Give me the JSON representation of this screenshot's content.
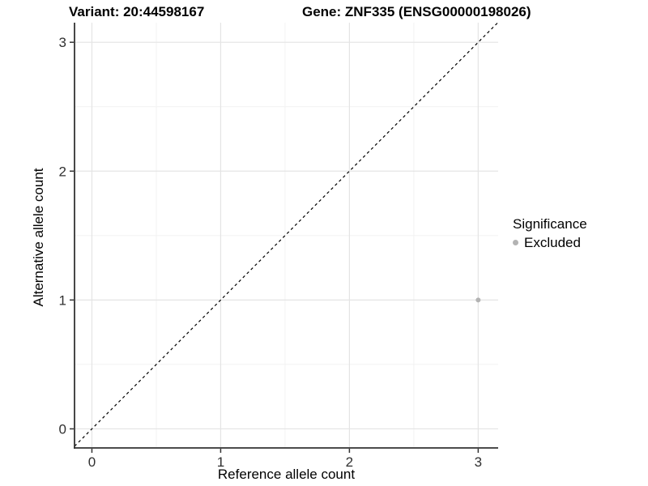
{
  "titles": {
    "variant": "Variant: 20:44598167",
    "gene": "Gene: ZNF335 (ENSG00000198026)"
  },
  "axes": {
    "x_label": "Reference allele count",
    "y_label": "Alternative allele count"
  },
  "legend": {
    "title": "Significance",
    "items": [
      {
        "label": "Excluded",
        "color": "#b3b3b3"
      }
    ]
  },
  "colors": {
    "background": "#ffffff",
    "grid_major": "#e4e4e4",
    "grid_minor": "#f2f2f2",
    "axis_line": "#333333",
    "tick_text": "#303030",
    "title_text": "#000000",
    "reference_line": "#000000",
    "point": "#b3b3b3"
  },
  "chart_data": {
    "type": "scatter",
    "title_left": "Variant: 20:44598167",
    "title_right": "Gene: ZNF335 (ENSG00000198026)",
    "xlabel": "Reference allele count",
    "ylabel": "Alternative allele count",
    "xlim": [
      -0.135,
      3.155
    ],
    "ylim": [
      -0.148,
      3.152
    ],
    "x_ticks": [
      0,
      1,
      2,
      3
    ],
    "y_ticks": [
      0,
      1,
      2,
      3
    ],
    "x_minor_ticks": [
      0.5,
      1.5,
      2.5
    ],
    "y_minor_ticks": [
      0.5,
      1.5,
      2.5
    ],
    "grid": "major+minor",
    "legend_position": "right",
    "series": [
      {
        "name": "Excluded",
        "color": "#b3b3b3",
        "points": [
          {
            "x": 3,
            "y": 1
          }
        ]
      }
    ],
    "reference_line": {
      "type": "identity y=x",
      "style": "dashed",
      "from": [
        -0.135,
        -0.135
      ],
      "to": [
        3.152,
        3.152
      ]
    }
  }
}
